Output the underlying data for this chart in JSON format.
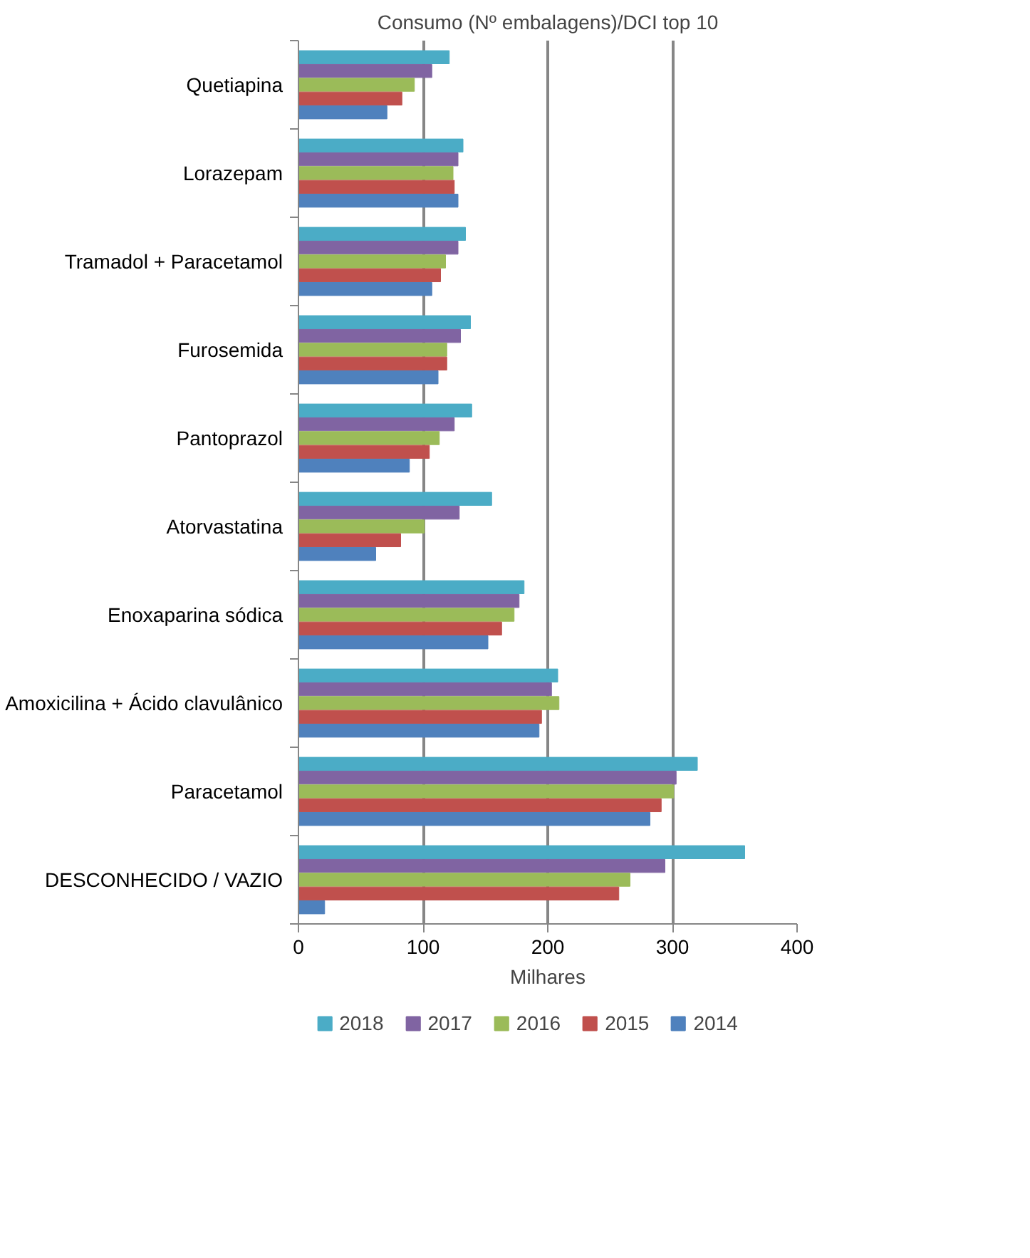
{
  "chart_data": {
    "type": "bar",
    "orientation": "horizontal",
    "title": "Consumo (Nº embalagens)/DCI top 10",
    "xlabel": "Milhares",
    "categories": [
      "Quetiapina",
      "Lorazepam",
      "Tramadol + Paracetamol",
      "Furosemida",
      "Pantoprazol",
      "Atorvastatina",
      "Enoxaparina sódica",
      "Amoxicilina + Ácido clavulânico",
      "Paracetamol",
      "DESCONHECIDO / VAZIO"
    ],
    "series": [
      {
        "name": "2018",
        "color": "#4bacc6",
        "values": [
          121,
          132,
          134,
          138,
          139,
          155,
          181,
          208,
          320,
          358
        ]
      },
      {
        "name": "2017",
        "color": "#8064a2",
        "values": [
          107,
          128,
          128,
          130,
          125,
          129,
          177,
          203,
          303,
          294
        ]
      },
      {
        "name": "2016",
        "color": "#9bbb59",
        "values": [
          93,
          124,
          118,
          119,
          113,
          101,
          173,
          209,
          301,
          266
        ]
      },
      {
        "name": "2015",
        "color": "#c0504d",
        "values": [
          83,
          125,
          114,
          119,
          105,
          82,
          163,
          195,
          291,
          257
        ]
      },
      {
        "name": "2014",
        "color": "#4f81bd",
        "values": [
          71,
          128,
          107,
          112,
          89,
          62,
          152,
          193,
          282,
          21
        ]
      }
    ],
    "xlim": [
      0,
      400
    ],
    "xticks": [
      0,
      100,
      200,
      300,
      400
    ],
    "grid": "x",
    "legend": "bottom"
  }
}
